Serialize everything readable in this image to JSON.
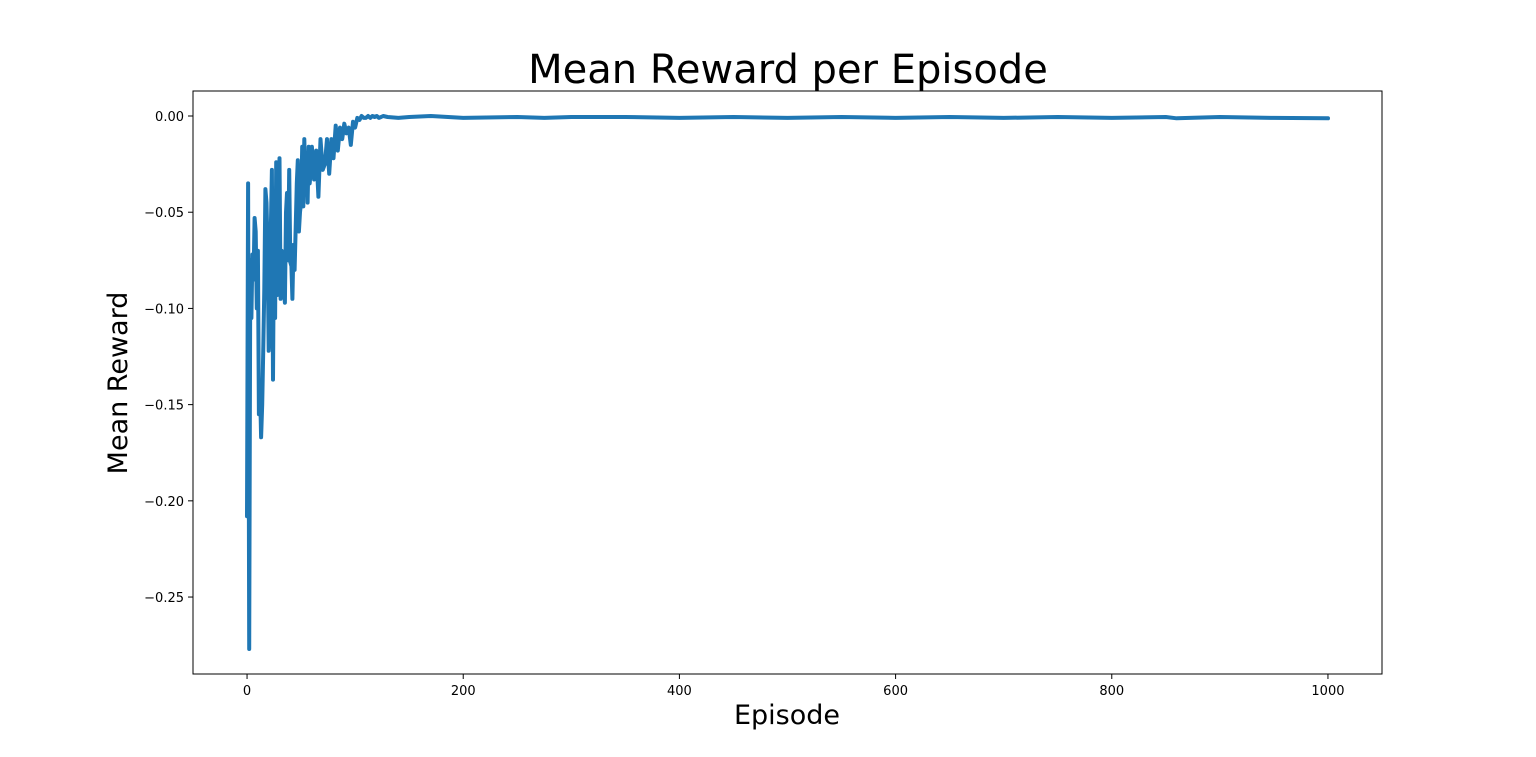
{
  "chart_data": {
    "type": "line",
    "title": "Mean Reward per Episode",
    "xlabel": "Episode",
    "ylabel": "Mean Reward",
    "xlim": [
      -50,
      1050
    ],
    "ylim": [
      -0.29,
      0.013
    ],
    "xticks": [
      0,
      200,
      400,
      600,
      800,
      1000
    ],
    "yticks": [
      0.0,
      -0.05,
      -0.1,
      -0.15,
      -0.2,
      -0.25
    ],
    "ytick_labels": [
      "0.00",
      "−0.05",
      "−0.10",
      "−0.15",
      "−0.20",
      "−0.25"
    ],
    "grid": false,
    "series": [
      {
        "color": "#1f77b4",
        "x": [
          0,
          1,
          2,
          3,
          4,
          5,
          6,
          7,
          8,
          9,
          10,
          11,
          12,
          13,
          14,
          15,
          16,
          17,
          18,
          19,
          20,
          21,
          22,
          23,
          24,
          25,
          26,
          27,
          28,
          29,
          30,
          31,
          32,
          33,
          34,
          35,
          36,
          37,
          38,
          39,
          40,
          41,
          42,
          43,
          44,
          45,
          46,
          47,
          48,
          49,
          50,
          51,
          52,
          53,
          54,
          55,
          56,
          57,
          58,
          59,
          60,
          62,
          64,
          66,
          68,
          70,
          72,
          74,
          76,
          78,
          80,
          82,
          84,
          86,
          88,
          90,
          92,
          94,
          96,
          98,
          100,
          102,
          104,
          106,
          108,
          110,
          112,
          114,
          116,
          118,
          120,
          122,
          124,
          126,
          130,
          140,
          150,
          170,
          200,
          250,
          275,
          300,
          350,
          400,
          450,
          500,
          550,
          600,
          650,
          700,
          750,
          800,
          850,
          860,
          900,
          950,
          1000
        ],
        "y": [
          -0.208,
          -0.035,
          -0.277,
          -0.075,
          -0.105,
          -0.072,
          -0.085,
          -0.053,
          -0.06,
          -0.1,
          -0.07,
          -0.155,
          -0.14,
          -0.167,
          -0.15,
          -0.12,
          -0.09,
          -0.038,
          -0.045,
          -0.07,
          -0.122,
          -0.11,
          -0.06,
          -0.028,
          -0.137,
          -0.05,
          -0.105,
          -0.024,
          -0.093,
          -0.06,
          -0.022,
          -0.095,
          -0.07,
          -0.085,
          -0.09,
          -0.097,
          -0.05,
          -0.04,
          -0.075,
          -0.028,
          -0.076,
          -0.078,
          -0.095,
          -0.067,
          -0.08,
          -0.058,
          -0.035,
          -0.023,
          -0.06,
          -0.05,
          -0.045,
          -0.016,
          -0.047,
          -0.012,
          -0.035,
          -0.02,
          -0.045,
          -0.016,
          -0.035,
          -0.028,
          -0.016,
          -0.033,
          -0.018,
          -0.042,
          -0.012,
          -0.028,
          -0.025,
          -0.012,
          -0.03,
          -0.012,
          -0.022,
          -0.005,
          -0.018,
          -0.006,
          -0.012,
          -0.004,
          -0.009,
          -0.006,
          -0.015,
          -0.003,
          -0.006,
          -0.001,
          -0.002,
          0.0,
          -0.001,
          -0.001,
          0.0,
          -0.001,
          0.0,
          -0.0005,
          0.0,
          -0.001,
          -0.0005,
          0.0,
          -0.0005,
          -0.001,
          -0.0005,
          0.0,
          -0.001,
          -0.0005,
          -0.001,
          -0.0005,
          -0.0005,
          -0.001,
          -0.0005,
          -0.001,
          -0.0005,
          -0.001,
          -0.0005,
          -0.001,
          -0.0005,
          -0.001,
          -0.0005,
          -0.0012,
          -0.0005,
          -0.001,
          -0.0012
        ]
      }
    ]
  }
}
